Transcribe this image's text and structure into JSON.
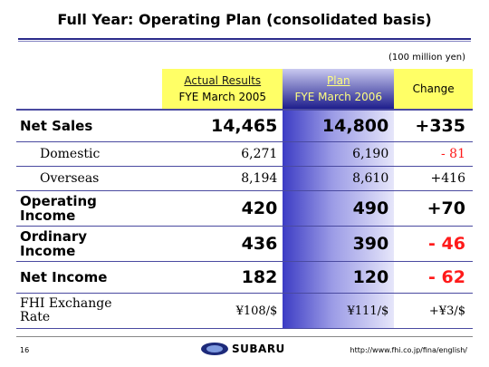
{
  "title": "Full Year: Operating Plan (consolidated basis)",
  "unit": "(100 million yen)",
  "columns": {
    "actual_line1": "Actual Results",
    "actual_line2": "FYE March 2005",
    "plan_line1": "Plan",
    "plan_line2": "FYE March 2006",
    "change": "Change"
  },
  "rows": [
    {
      "label": "Net Sales",
      "actual": "14,465",
      "plan": "14,800",
      "change": "+335"
    },
    {
      "label": "Domestic",
      "actual": "6,271",
      "plan": "6,190",
      "change": "- 81"
    },
    {
      "label": "Overseas",
      "actual": "8,194",
      "plan": "8,610",
      "change": "+416"
    },
    {
      "label_line1": "Operating",
      "label_line2": "Income",
      "actual": "420",
      "plan": "490",
      "change": "+70"
    },
    {
      "label_line1": "Ordinary",
      "label_line2": "Income",
      "actual": "436",
      "plan": "390",
      "change": "- 46"
    },
    {
      "label": "Net Income",
      "actual": "182",
      "plan": "120",
      "change": "- 62"
    },
    {
      "label_line1": "FHI Exchange",
      "label_line2": "Rate",
      "actual": "¥108/$",
      "plan": "¥111/$",
      "change": "+¥3/$"
    }
  ],
  "footer": {
    "page": "16",
    "logo_text": "SUBARU",
    "url": "http://www.fhi.co.jp/fina/english/"
  },
  "colors": {
    "header_yellow": "#ffff66",
    "plan_blue": "#3c3cc4",
    "negative": "#ff1a1a",
    "rule": "#4a4aa0"
  }
}
